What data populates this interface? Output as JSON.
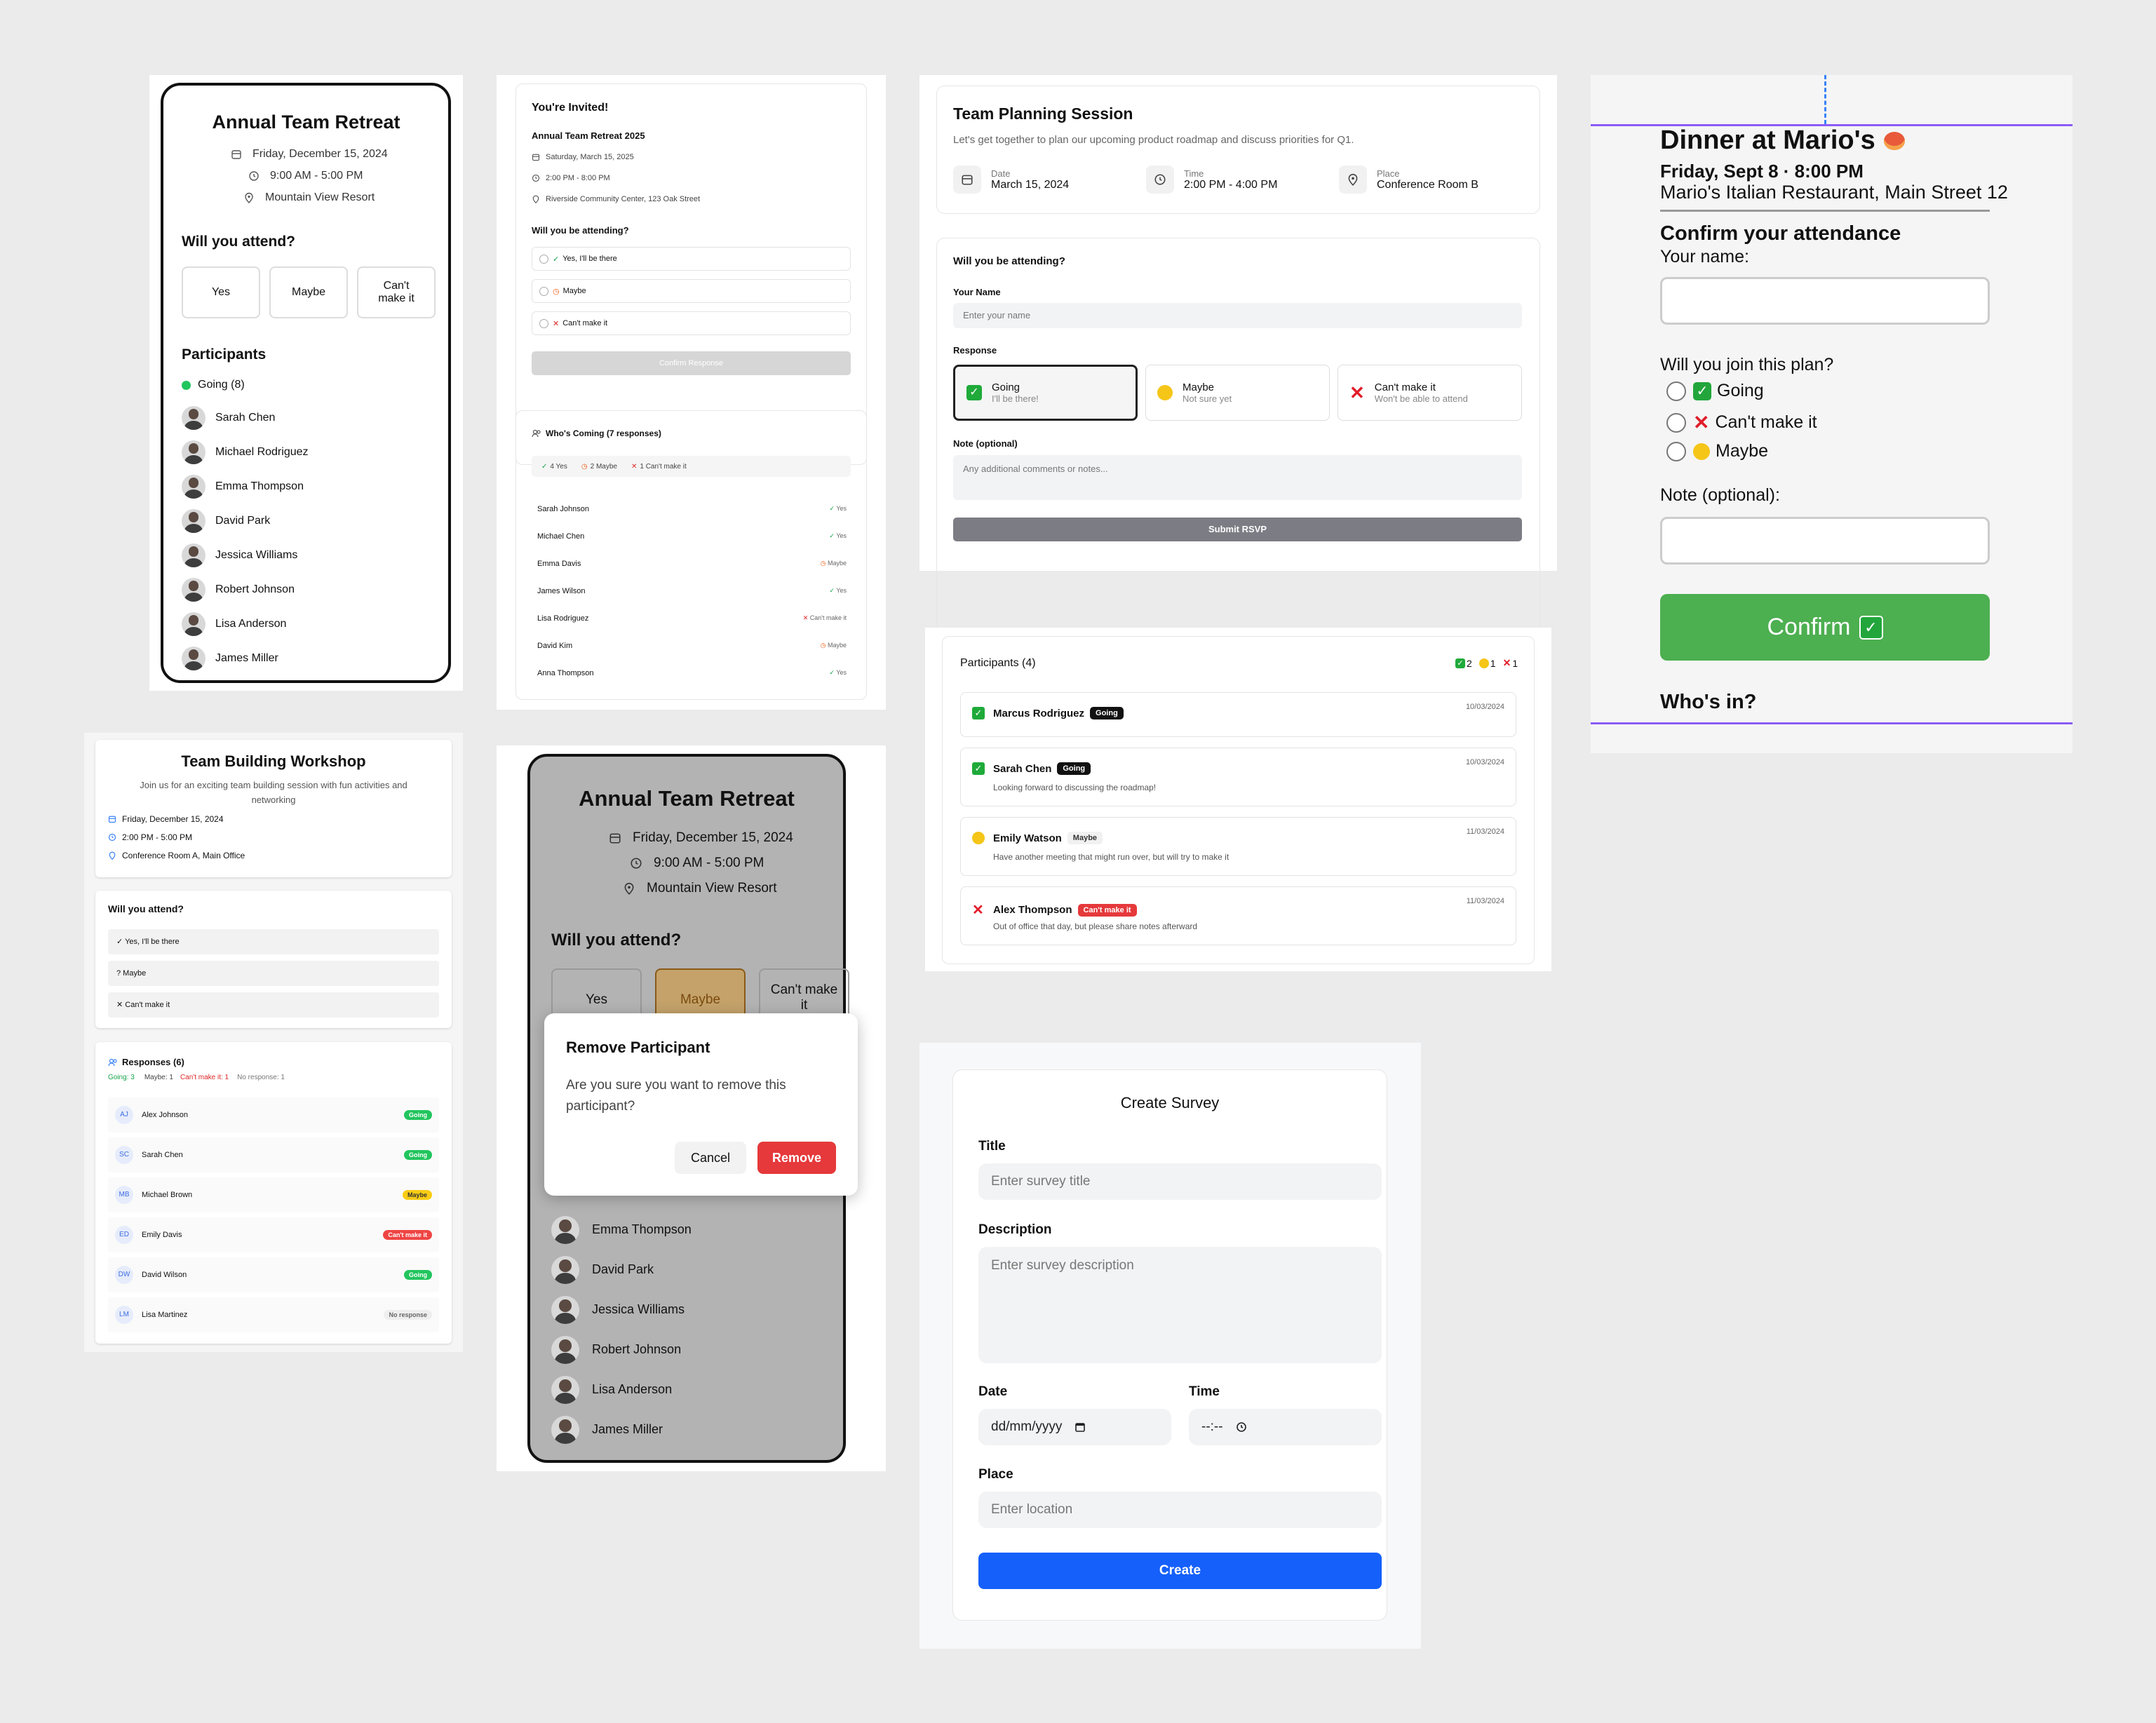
{
  "p1": {
    "title": "Annual Team Retreat",
    "date": "Friday, December 15, 2024",
    "time": "9:00 AM - 5:00 PM",
    "location": "Mountain View Resort",
    "question": "Will you attend?",
    "options": [
      "Yes",
      "Maybe",
      "Can't make it"
    ],
    "participants_heading": "Participants",
    "going_label": "Going (8)",
    "going_color": "#22c55e",
    "participants": [
      "Sarah Chen",
      "Michael Rodriguez",
      "Emma Thompson",
      "David Park",
      "Jessica Williams",
      "Robert Johnson",
      "Lisa Anderson",
      "James Miller"
    ]
  },
  "p2": {
    "invited": "You're Invited!",
    "event": "Annual Team Retreat 2025",
    "date": "Saturday, March 15, 2025",
    "time": "2:00 PM - 8:00 PM",
    "place": "Riverside Community Center, 123 Oak Street",
    "question": "Will you be attending?",
    "options": [
      {
        "icon": "check-icon",
        "label": "Yes, I'll be there"
      },
      {
        "icon": "clock-icon",
        "label": "Maybe"
      },
      {
        "icon": "x-icon",
        "label": "Can't make it"
      }
    ],
    "confirm": "Confirm Response",
    "whos_coming": "Who's Coming (7 responses)",
    "summary": [
      "4 Yes",
      "2 Maybe",
      "1 Can't make it"
    ],
    "rows": [
      {
        "name": "Sarah Johnson",
        "status": "Yes"
      },
      {
        "name": "Michael Chen",
        "status": "Yes"
      },
      {
        "name": "Emma Davis",
        "status": "Maybe"
      },
      {
        "name": "James Wilson",
        "status": "Yes"
      },
      {
        "name": "Lisa Rodriguez",
        "status": "Can't make it"
      },
      {
        "name": "David Kim",
        "status": "Maybe"
      },
      {
        "name": "Anna Thompson",
        "status": "Yes"
      }
    ]
  },
  "p3": {
    "title": "Team Planning Session",
    "subtitle": "Let's get together to plan our upcoming product roadmap and discuss priorities for Q1.",
    "date_label": "Date",
    "date": "March 15, 2024",
    "time_label": "Time",
    "time": "2:00 PM - 4:00 PM",
    "place_label": "Place",
    "place": "Conference Room B",
    "question": "Will you be attending?",
    "name_label": "Your Name",
    "name_placeholder": "Enter your name",
    "response_label": "Response",
    "responses": [
      {
        "title": "Going",
        "sub": "I'll be there!"
      },
      {
        "title": "Maybe",
        "sub": "Not sure yet"
      },
      {
        "title": "Can't make it",
        "sub": "Won't be able to attend"
      }
    ],
    "note_label": "Note (optional)",
    "note_placeholder": "Any additional comments or notes...",
    "submit": "Submit RSVP"
  },
  "p4": {
    "title": "Dinner at Mario's",
    "datetime": "Friday, Sept 8 · 8:00 PM",
    "place": "Mario's Italian Restaurant, Main Street 12",
    "confirm_heading": "Confirm your attendance",
    "name_label": "Your name:",
    "join_label": "Will you join this plan?",
    "options": [
      "Going",
      "Can't make it",
      "Maybe"
    ],
    "note_label": "Note (optional):",
    "confirm": "Confirm",
    "whos_in": "Who's in?",
    "accent": "#4caf50"
  },
  "p5": {
    "title": "Team Building Workshop",
    "subtitle": "Join us for an exciting team building session with fun activities and networking",
    "date": "Friday, December 15, 2024",
    "time": "2:00 PM - 5:00 PM",
    "place": "Conference Room A, Main Office",
    "question": "Will you attend?",
    "options": [
      "✓ Yes, I'll be there",
      "? Maybe",
      "✕ Can't make it"
    ],
    "responses_heading": "Responses (6)",
    "summary_going": "Going: 3",
    "summary_maybe": "Maybe: 1",
    "summary_cant": "Can't make it: 1",
    "summary_none": "No response: 1",
    "rows": [
      {
        "initials": "AJ",
        "name": "Alex Johnson",
        "status": "Going"
      },
      {
        "initials": "SC",
        "name": "Sarah Chen",
        "status": "Going"
      },
      {
        "initials": "MB",
        "name": "Michael Brown",
        "status": "Maybe"
      },
      {
        "initials": "ED",
        "name": "Emily Davis",
        "status": "Can't make it"
      },
      {
        "initials": "DW",
        "name": "David Wilson",
        "status": "Going"
      },
      {
        "initials": "LM",
        "name": "Lisa Martinez",
        "status": "No response"
      }
    ]
  },
  "p6": {
    "title": "Annual Team Retreat",
    "date": "Friday, December 15, 2024",
    "time": "9:00 AM - 5:00 PM",
    "location": "Mountain View Resort",
    "question": "Will you attend?",
    "options": [
      "Yes",
      "Maybe",
      "Can't make it"
    ],
    "participants": [
      "Emma Thompson",
      "David Park",
      "Jessica Williams",
      "Robert Johnson",
      "Lisa Anderson",
      "James Miller"
    ],
    "dialog_title": "Remove Participant",
    "dialog_text": "Are you sure you want to remove this participant?",
    "cancel": "Cancel",
    "remove": "Remove",
    "danger": "#e5393b"
  },
  "p7": {
    "heading": "Participants (4)",
    "counts": [
      "2",
      "1",
      "1"
    ],
    "rows": [
      {
        "icon": "check-box-icon",
        "name": "Marcus Rodriguez",
        "badge": "Going",
        "date": "10/03/2024",
        "note": ""
      },
      {
        "icon": "check-box-icon",
        "name": "Sarah Chen",
        "badge": "Going",
        "date": "10/03/2024",
        "note": "Looking forward to discussing the roadmap!"
      },
      {
        "icon": "thinking-face-icon",
        "name": "Emily Watson",
        "badge": "Maybe",
        "date": "11/03/2024",
        "note": "Have another meeting that might run over, but will try to make it"
      },
      {
        "icon": "x-icon",
        "name": "Alex Thompson",
        "badge": "Can't make it",
        "date": "11/03/2024",
        "note": "Out of office that day, but please share notes afterward"
      }
    ]
  },
  "p8": {
    "title": "Create Survey",
    "title_label": "Title",
    "title_placeholder": "Enter survey title",
    "desc_label": "Description",
    "desc_placeholder": "Enter survey description",
    "date_label": "Date",
    "date_placeholder": "dd/mm/yyyy",
    "time_label": "Time",
    "time_placeholder": "--:--",
    "place_label": "Place",
    "place_placeholder": "Enter location",
    "create": "Create",
    "accent": "#1560fa"
  }
}
